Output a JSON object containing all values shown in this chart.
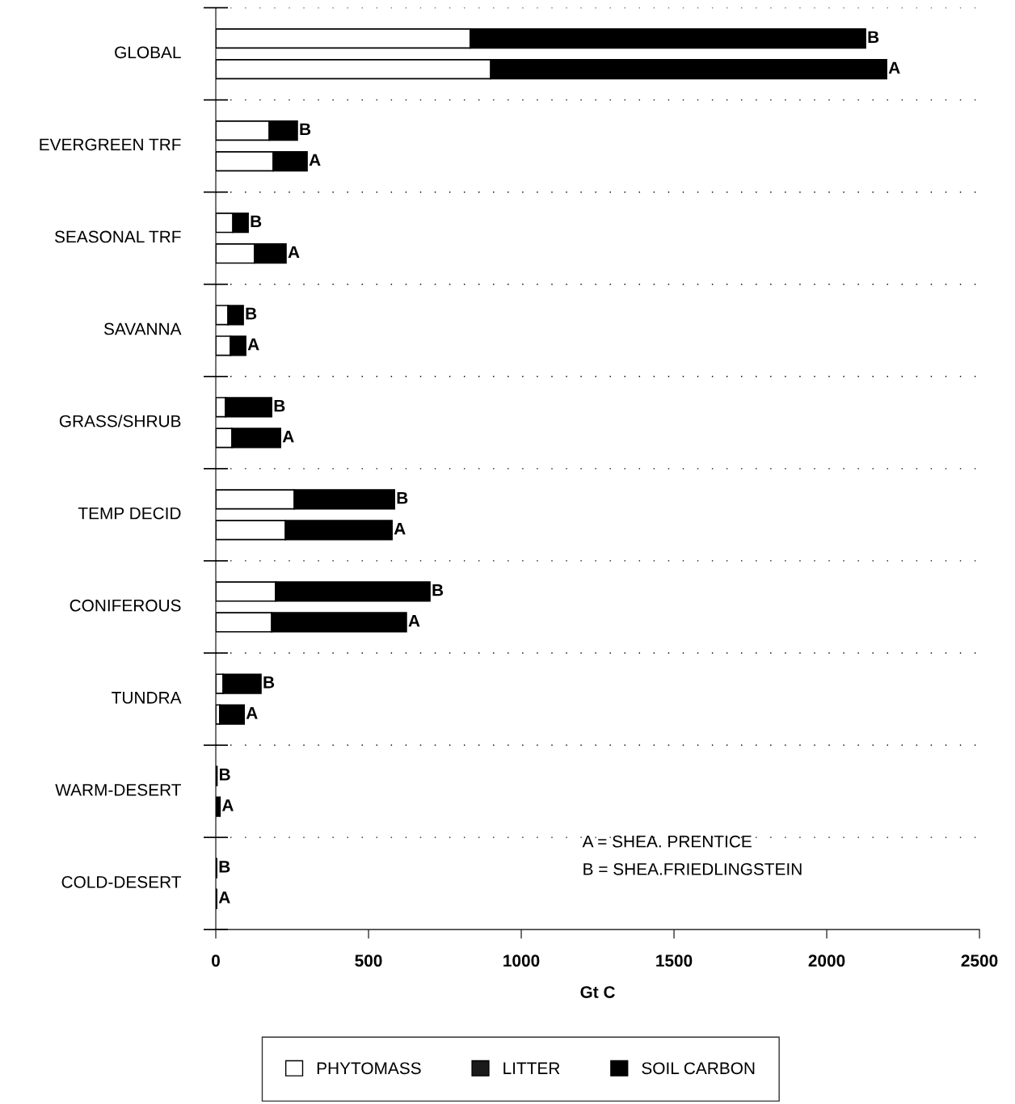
{
  "chart_data": {
    "type": "bar",
    "orientation": "horizontal",
    "stacked": true,
    "categories": [
      "GLOBAL",
      null,
      null,
      "EVERGREEN TRF",
      null,
      null,
      "SEASONAL TRF",
      null,
      null,
      "SAVANNA",
      null,
      null,
      "GRASS/SHRUB",
      null,
      null,
      "TEMP DECID",
      null,
      null,
      "CONIFEROUS",
      null,
      null,
      "TUNDRA",
      null,
      null,
      "WARM-DESERT",
      null,
      null,
      "COLD-DESERT",
      null,
      null
    ],
    "series": [
      {
        "name": "PHYTOMASS",
        "color": "#ffffff",
        "values": [
          833,
          900,
          null,
          175,
          188,
          null,
          56,
          127,
          null,
          40,
          48,
          null,
          32,
          53,
          null,
          257,
          228,
          null,
          196,
          183,
          null,
          24,
          13,
          null,
          null,
          null,
          null,
          null,
          null,
          null
        ]
      },
      {
        "name": "LITTER",
        "color": "#1a1a1a",
        "values": [
          null,
          null,
          null,
          null,
          null,
          null,
          null,
          null,
          null,
          null,
          null,
          null,
          null,
          null,
          null,
          null,
          null,
          null,
          null,
          null,
          null,
          null,
          null,
          null,
          null,
          null,
          null,
          null,
          null,
          null
        ]
      },
      {
        "name": "SOIL CARBON",
        "color": "#000000",
        "values": [
          1294,
          1296,
          null,
          92,
          111,
          null,
          50,
          103,
          null,
          50,
          50,
          null,
          151,
          159,
          null,
          328,
          349,
          null,
          505,
          441,
          null,
          124,
          80,
          null,
          4,
          14,
          null,
          3,
          3,
          null
        ],
        "value_labels": [
          "B",
          "A",
          null,
          "B",
          "A",
          null,
          "B",
          "A",
          null,
          "B",
          "A",
          null,
          "B",
          "A",
          null,
          "B",
          "A",
          null,
          "B",
          "A",
          null,
          "B",
          "A",
          null,
          "B",
          "A",
          null,
          "B",
          "A",
          null
        ]
      }
    ],
    "xlim": [
      0,
      2500
    ],
    "xticks": [
      0,
      500,
      1000,
      1500,
      2000,
      2500
    ],
    "xlabel": "Gt C",
    "grid": "y",
    "legend": "bottom",
    "annotations": [
      "A = SHEA. PRENTICE",
      "B = SHEA.FRIEDLINGSTEIN"
    ]
  }
}
